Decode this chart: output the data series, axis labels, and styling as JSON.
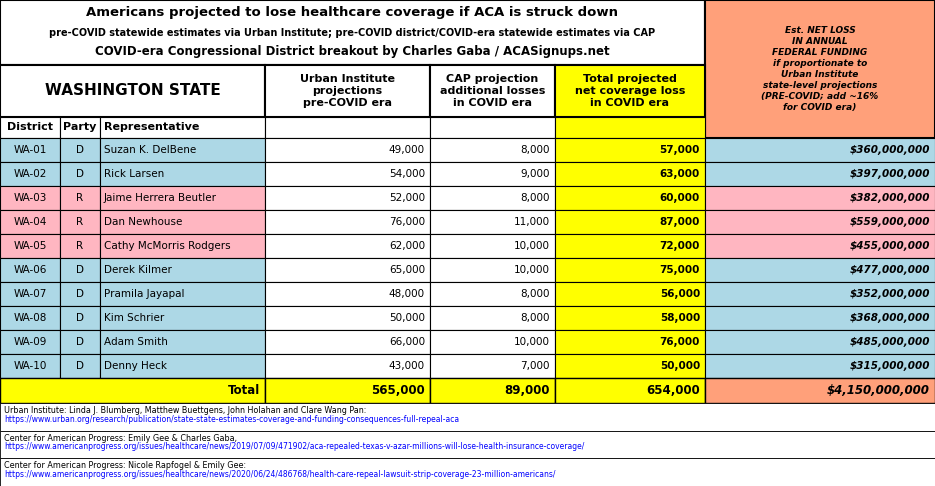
{
  "title_line1": "Americans projected to lose healthcare coverage if ACA is struck down",
  "title_line2": "pre-COVID statewide estimates via Urban Institute; pre-COVID district/COVID-era statewide estimates via CAP",
  "title_line3": "COVID-era Congressional District breakout by Charles Gaba / ACASignups.net",
  "state_header": "WASHINGTON STATE",
  "col3_header": "Urban Institute\nprojections\npre-COVID era",
  "col4_header": "CAP projection\nadditional losses\nin COVID era",
  "col5_header": "Total projected\nnet coverage loss\nin COVID era",
  "col6_header": "Est. NET LOSS\nIN ANNUAL\nFEDERAL FUNDING\nif proportionate to\nUrban Institute\nstate-level projections\n(PRE-COVID; add ~16%\nfor COVID era)",
  "rows": [
    [
      "WA-01",
      "D",
      "Suzan K. DelBene",
      "49,000",
      "8,000",
      "57,000",
      "$360,000,000"
    ],
    [
      "WA-02",
      "D",
      "Rick Larsen",
      "54,000",
      "9,000",
      "63,000",
      "$397,000,000"
    ],
    [
      "WA-03",
      "R",
      "Jaime Herrera Beutler",
      "52,000",
      "8,000",
      "60,000",
      "$382,000,000"
    ],
    [
      "WA-04",
      "R",
      "Dan Newhouse",
      "76,000",
      "11,000",
      "87,000",
      "$559,000,000"
    ],
    [
      "WA-05",
      "R",
      "Cathy McMorris Rodgers",
      "62,000",
      "10,000",
      "72,000",
      "$455,000,000"
    ],
    [
      "WA-06",
      "D",
      "Derek Kilmer",
      "65,000",
      "10,000",
      "75,000",
      "$477,000,000"
    ],
    [
      "WA-07",
      "D",
      "Pramila Jayapal",
      "48,000",
      "8,000",
      "56,000",
      "$352,000,000"
    ],
    [
      "WA-08",
      "D",
      "Kim Schrier",
      "50,000",
      "8,000",
      "58,000",
      "$368,000,000"
    ],
    [
      "WA-09",
      "D",
      "Adam Smith",
      "66,000",
      "10,000",
      "76,000",
      "$485,000,000"
    ],
    [
      "WA-10",
      "D",
      "Denny Heck",
      "43,000",
      "7,000",
      "50,000",
      "$315,000,000"
    ]
  ],
  "total_row": [
    "",
    "",
    "Total",
    "565,000",
    "89,000",
    "654,000",
    "$4,150,000,000"
  ],
  "footnote_groups": [
    [
      "Urban Institute: Linda J. Blumberg, Matthew Buettgens, John Holahan and Clare Wang Pan:",
      "https://www.urban.org/research/publication/state-state-estimates-coverage-and-funding-consequences-full-repeal-aca"
    ],
    [
      "Center for American Progress: Emily Gee & Charles Gaba,",
      "https://www.americanprogress.org/issues/healthcare/news/2019/07/09/471902/aca-repealed-texas-v-azar-millions-will-lose-health-insurance-coverage/"
    ],
    [
      "Center for American Progress: Nicole Rapfogel & Emily Gee:",
      "https://www.americanprogress.org/issues/healthcare/news/2020/06/24/486768/health-care-repeal-lawsuit-strip-coverage-23-million-americans/"
    ]
  ],
  "color_D_bg": "#ADD8E6",
  "color_R_bg": "#FFB6C1",
  "color_total_bg": "#FFFF00",
  "color_yellow_bg": "#FFFF00",
  "color_orange_bg": "#FFA07A",
  "color_white": "#FFFFFF",
  "color_black": "#000000"
}
